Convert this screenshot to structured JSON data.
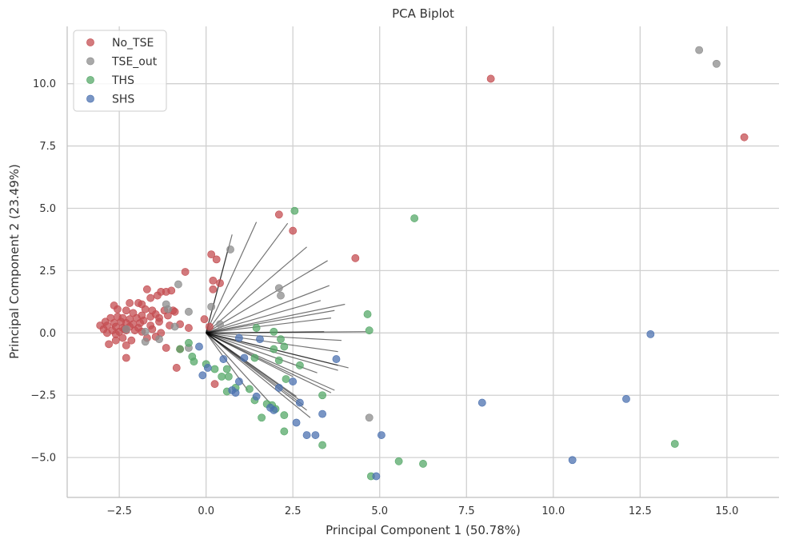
{
  "chart_data": {
    "type": "scatter",
    "title": "PCA Biplot",
    "xlabel": "Principal Component 1 (50.78%)",
    "ylabel": "Principal Component 2 (23.49%)",
    "xlim": [
      -4.0,
      16.5
    ],
    "ylim": [
      -6.6,
      12.3
    ],
    "xticks": [
      -2.5,
      0.0,
      2.5,
      5.0,
      7.5,
      10.0,
      12.5,
      15.0
    ],
    "xtick_labels": [
      "−2.5",
      "0.0",
      "2.5",
      "5.0",
      "7.5",
      "10.0",
      "12.5",
      "15.0"
    ],
    "yticks": [
      -5.0,
      -2.5,
      0.0,
      2.5,
      5.0,
      7.5,
      10.0
    ],
    "ytick_labels": [
      "−5.0",
      "−2.5",
      "0.0",
      "2.5",
      "5.0",
      "7.5",
      "10.0"
    ],
    "grid": true,
    "legend_position": "top-left",
    "loading_vectors": [
      [
        1.45,
        4.45
      ],
      [
        0.75,
        3.95
      ],
      [
        0.65,
        3.45
      ],
      [
        2.35,
        4.4
      ],
      [
        2.9,
        3.45
      ],
      [
        3.5,
        2.9
      ],
      [
        3.55,
        1.9
      ],
      [
        3.3,
        1.3
      ],
      [
        4.0,
        1.15
      ],
      [
        3.7,
        0.9
      ],
      [
        3.6,
        0.6
      ],
      [
        3.4,
        0.05
      ],
      [
        4.6,
        0.05
      ],
      [
        3.9,
        -0.3
      ],
      [
        3.8,
        -0.75
      ],
      [
        3.8,
        -1.3
      ],
      [
        3.8,
        -1.5
      ],
      [
        4.1,
        -1.4
      ],
      [
        3.2,
        -1.6
      ],
      [
        3.7,
        -2.3
      ],
      [
        3.6,
        -2.4
      ],
      [
        2.5,
        -1.75
      ],
      [
        2.6,
        -2.55
      ],
      [
        2.7,
        -2.7
      ],
      [
        2.8,
        -2.9
      ],
      [
        2.9,
        -3.1
      ],
      [
        3.0,
        -3.4
      ],
      [
        1.9,
        -2.9
      ],
      [
        1.2,
        -2.3
      ]
    ],
    "series": [
      {
        "name": "No_TSE",
        "color": "#c44e52",
        "points": [
          [
            8.2,
            10.2
          ],
          [
            15.5,
            7.85
          ],
          [
            2.1,
            4.75
          ],
          [
            2.5,
            4.1
          ],
          [
            4.3,
            3.0
          ],
          [
            0.3,
            2.95
          ],
          [
            0.15,
            3.15
          ],
          [
            -0.6,
            2.45
          ],
          [
            0.2,
            2.1
          ],
          [
            0.4,
            2.0
          ],
          [
            0.2,
            1.75
          ],
          [
            -1.7,
            1.75
          ],
          [
            -1.3,
            1.65
          ],
          [
            -1.15,
            1.65
          ],
          [
            -1.0,
            1.7
          ],
          [
            -1.4,
            1.5
          ],
          [
            -1.6,
            1.4
          ],
          [
            -2.2,
            1.2
          ],
          [
            -1.95,
            1.2
          ],
          [
            -1.85,
            1.15
          ],
          [
            -2.65,
            1.1
          ],
          [
            -2.55,
            0.95
          ],
          [
            -2.3,
            0.9
          ],
          [
            -1.75,
            0.95
          ],
          [
            -1.55,
            0.9
          ],
          [
            -1.2,
            0.9
          ],
          [
            -0.95,
            0.9
          ],
          [
            -0.9,
            0.85
          ],
          [
            -2.1,
            0.8
          ],
          [
            -1.85,
            0.7
          ],
          [
            -1.6,
            0.65
          ],
          [
            -1.45,
            0.75
          ],
          [
            -1.35,
            0.6
          ],
          [
            -1.1,
            0.7
          ],
          [
            -2.75,
            0.6
          ],
          [
            -2.55,
            0.65
          ],
          [
            -2.4,
            0.6
          ],
          [
            -2.2,
            0.55
          ],
          [
            -2.0,
            0.6
          ],
          [
            -1.8,
            0.5
          ],
          [
            -2.9,
            0.45
          ],
          [
            -2.65,
            0.4
          ],
          [
            -2.45,
            0.45
          ],
          [
            -2.3,
            0.4
          ],
          [
            -2.1,
            0.35
          ],
          [
            -1.9,
            0.4
          ],
          [
            -1.35,
            0.45
          ],
          [
            -3.05,
            0.3
          ],
          [
            -2.85,
            0.3
          ],
          [
            -2.6,
            0.25
          ],
          [
            -2.4,
            0.2
          ],
          [
            -2.2,
            0.25
          ],
          [
            -1.95,
            0.2
          ],
          [
            -1.6,
            0.3
          ],
          [
            -2.95,
            0.15
          ],
          [
            -2.7,
            0.1
          ],
          [
            -2.5,
            0.05
          ],
          [
            -2.3,
            0.1
          ],
          [
            -2.05,
            0.1
          ],
          [
            -1.85,
            0.05
          ],
          [
            -1.55,
            0.15
          ],
          [
            -1.05,
            0.3
          ],
          [
            -2.85,
            0.0
          ],
          [
            -2.6,
            -0.05
          ],
          [
            -2.35,
            0.15
          ],
          [
            -1.3,
            0.0
          ],
          [
            -0.75,
            0.35
          ],
          [
            -0.5,
            0.2
          ],
          [
            -2.6,
            -0.3
          ],
          [
            -2.4,
            -0.2
          ],
          [
            -2.15,
            -0.3
          ],
          [
            -1.7,
            -0.2
          ],
          [
            -1.45,
            -0.15
          ],
          [
            -0.05,
            0.55
          ],
          [
            0.1,
            0.25
          ],
          [
            -2.8,
            -0.45
          ],
          [
            -2.3,
            -0.5
          ],
          [
            -1.15,
            -0.6
          ],
          [
            -0.75,
            -0.65
          ],
          [
            -2.3,
            -1.0
          ],
          [
            -0.85,
            -1.4
          ],
          [
            0.25,
            -2.05
          ]
        ]
      },
      {
        "name": "TSE_out",
        "color": "#8c8c8c",
        "points": [
          [
            14.2,
            11.35
          ],
          [
            14.7,
            10.8
          ],
          [
            0.7,
            3.35
          ],
          [
            -0.8,
            1.95
          ],
          [
            2.1,
            1.8
          ],
          [
            2.15,
            1.5
          ],
          [
            -1.15,
            1.15
          ],
          [
            0.15,
            1.05
          ],
          [
            -1.1,
            0.95
          ],
          [
            -0.5,
            0.85
          ],
          [
            0.4,
            0.35
          ],
          [
            -0.9,
            0.25
          ],
          [
            -2.3,
            0.15
          ],
          [
            -1.75,
            0.05
          ],
          [
            -1.35,
            -0.25
          ],
          [
            -1.75,
            -0.35
          ],
          [
            -0.5,
            -0.6
          ],
          [
            4.7,
            -3.4
          ]
        ]
      },
      {
        "name": "THS",
        "color": "#55a868",
        "points": [
          [
            2.55,
            4.9
          ],
          [
            6.0,
            4.6
          ],
          [
            4.65,
            0.75
          ],
          [
            4.7,
            0.1
          ],
          [
            1.45,
            0.2
          ],
          [
            1.95,
            0.05
          ],
          [
            2.15,
            -0.25
          ],
          [
            2.25,
            -0.55
          ],
          [
            -0.5,
            -0.4
          ],
          [
            -0.75,
            -0.65
          ],
          [
            1.95,
            -0.65
          ],
          [
            1.4,
            -1.0
          ],
          [
            -0.4,
            -0.95
          ],
          [
            -0.35,
            -1.15
          ],
          [
            0.0,
            -1.25
          ],
          [
            0.25,
            -1.45
          ],
          [
            0.6,
            -1.45
          ],
          [
            0.45,
            -1.75
          ],
          [
            0.65,
            -1.75
          ],
          [
            2.1,
            -1.1
          ],
          [
            2.3,
            -1.85
          ],
          [
            2.7,
            -1.3
          ],
          [
            1.25,
            -2.25
          ],
          [
            0.85,
            -2.2
          ],
          [
            0.6,
            -2.35
          ],
          [
            1.4,
            -2.7
          ],
          [
            1.75,
            -2.85
          ],
          [
            1.9,
            -2.9
          ],
          [
            2.0,
            -3.05
          ],
          [
            2.25,
            -3.3
          ],
          [
            3.35,
            -2.5
          ],
          [
            1.6,
            -3.4
          ],
          [
            2.25,
            -3.95
          ],
          [
            3.35,
            -4.5
          ],
          [
            5.55,
            -5.15
          ],
          [
            6.25,
            -5.25
          ],
          [
            4.75,
            -5.75
          ],
          [
            13.5,
            -4.45
          ]
        ]
      },
      {
        "name": "SHS",
        "color": "#4c72b0",
        "points": [
          [
            12.8,
            -0.05
          ],
          [
            -0.2,
            -0.55
          ],
          [
            0.95,
            -0.2
          ],
          [
            1.55,
            -0.25
          ],
          [
            3.75,
            -1.05
          ],
          [
            0.5,
            -1.05
          ],
          [
            1.1,
            -1.0
          ],
          [
            0.05,
            -1.4
          ],
          [
            -0.1,
            -1.7
          ],
          [
            0.95,
            -1.95
          ],
          [
            2.1,
            -2.2
          ],
          [
            2.5,
            -1.95
          ],
          [
            0.75,
            -2.3
          ],
          [
            0.85,
            -2.4
          ],
          [
            1.45,
            -2.55
          ],
          [
            2.7,
            -2.8
          ],
          [
            1.95,
            -3.1
          ],
          [
            1.85,
            -3.0
          ],
          [
            3.35,
            -3.25
          ],
          [
            7.95,
            -2.8
          ],
          [
            12.1,
            -2.65
          ],
          [
            2.6,
            -3.6
          ],
          [
            2.9,
            -4.1
          ],
          [
            3.15,
            -4.1
          ],
          [
            5.05,
            -4.1
          ],
          [
            10.55,
            -5.1
          ],
          [
            4.9,
            -5.75
          ]
        ]
      }
    ]
  }
}
